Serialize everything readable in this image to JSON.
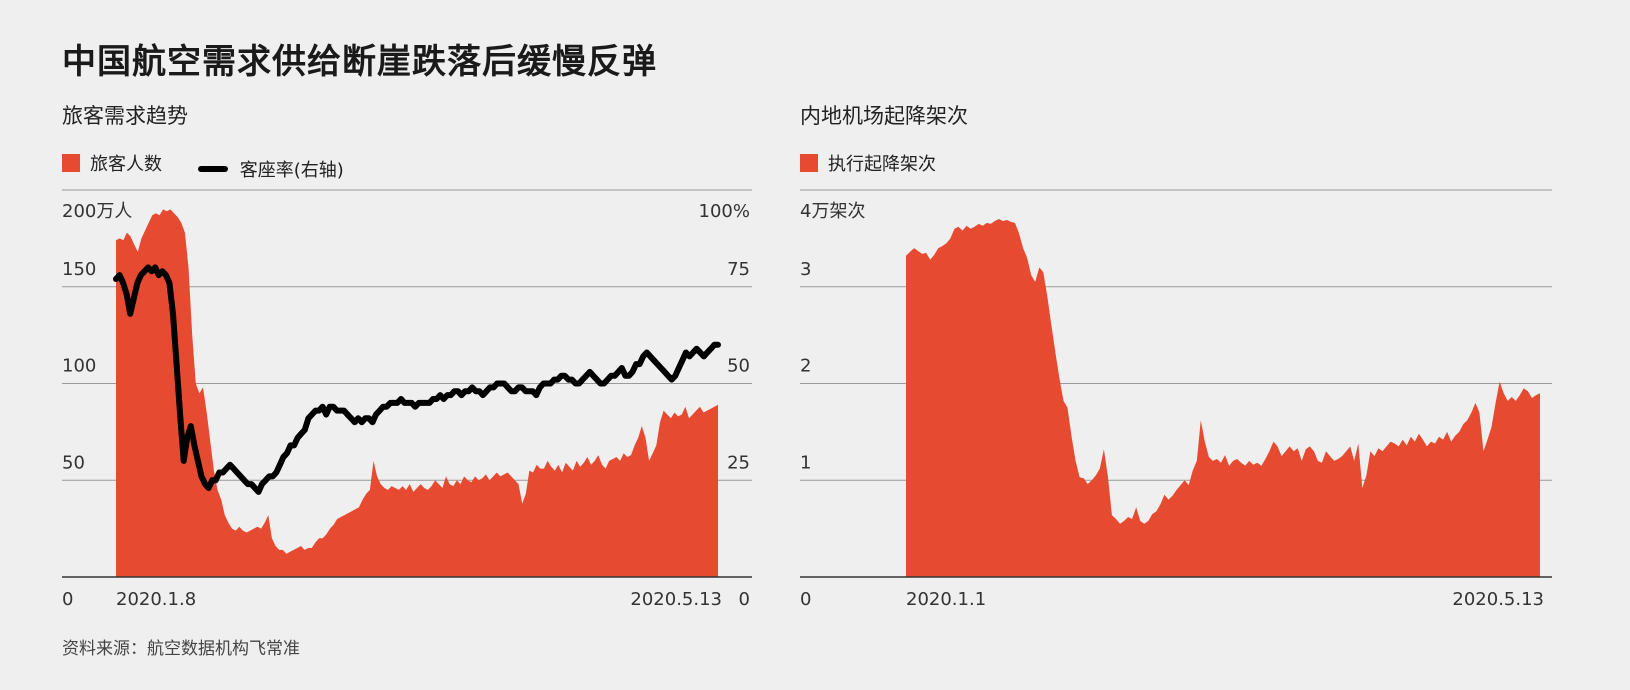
{
  "title": "中国航空需求供给断崖跌落后缓慢反弹",
  "source": "资料来源：航空数据机构飞常准",
  "colors": {
    "area": "#e64a31",
    "line": "#000000",
    "grid": "#9a9a9a",
    "axis": "#333333"
  },
  "chart_data": [
    {
      "type": "area",
      "title": "旅客需求趋势",
      "legend_placement": "top-left",
      "grid": true,
      "x_tick_labels": [
        "2020.1.8",
        "2020.5.13"
      ],
      "y_unit_label": "200万人",
      "y_right_unit_label": "100%",
      "ylim": [
        0,
        200
      ],
      "y_right_lim": [
        0,
        100
      ],
      "y_ticks": [
        {
          "value": 0,
          "label": "0"
        },
        {
          "value": 50,
          "label": "50"
        },
        {
          "value": 100,
          "label": "100"
        },
        {
          "value": 150,
          "label": "150"
        }
      ],
      "y_right_ticks": [
        {
          "value": 0,
          "label": "0"
        },
        {
          "value": 25,
          "label": "25"
        },
        {
          "value": 50,
          "label": "50"
        },
        {
          "value": 75,
          "label": "75"
        }
      ],
      "series": [
        {
          "name": "旅客人数",
          "kind": "area",
          "axis": "left",
          "values": [
            174,
            175,
            174,
            178,
            176,
            172,
            168,
            175,
            179,
            183,
            187,
            188,
            187,
            190,
            189,
            190,
            188,
            186,
            183,
            178,
            160,
            125,
            100,
            95,
            98,
            85,
            70,
            55,
            45,
            40,
            32,
            28,
            25,
            24,
            26,
            24,
            23,
            24,
            25,
            26,
            25,
            28,
            32,
            20,
            16,
            14,
            14,
            12,
            13,
            14,
            15,
            16,
            14,
            15,
            15,
            18,
            20,
            20,
            22,
            25,
            27,
            30,
            31,
            32,
            33,
            34,
            35,
            36,
            40,
            43,
            45,
            60,
            52,
            48,
            46,
            45,
            47,
            46,
            45,
            47,
            45,
            48,
            44,
            46,
            48,
            46,
            45,
            47,
            50,
            48,
            46,
            52,
            48,
            47,
            50,
            48,
            52,
            50,
            49,
            52,
            50,
            51,
            53,
            50,
            52,
            54,
            52,
            53,
            54,
            52,
            50,
            48,
            38,
            43,
            55,
            54,
            58,
            56,
            56,
            60,
            57,
            55,
            58,
            54,
            59,
            57,
            55,
            60,
            57,
            59,
            62,
            58,
            60,
            63,
            58,
            56,
            60,
            61,
            62,
            60,
            64,
            62,
            63,
            68,
            72,
            78,
            72,
            60,
            64,
            68,
            80,
            86,
            84,
            82,
            85,
            83,
            84,
            88,
            82,
            84,
            86,
            88,
            85,
            86,
            87,
            88,
            89
          ]
        },
        {
          "name": "客座率(右轴)",
          "kind": "line",
          "axis": "right",
          "values": [
            77,
            78,
            76,
            73,
            68,
            72,
            76,
            78,
            79,
            80,
            79,
            80,
            78,
            79,
            78,
            76,
            68,
            55,
            42,
            30,
            36,
            39,
            34,
            30,
            26,
            24,
            23,
            25,
            25,
            27,
            27,
            28,
            29,
            28,
            27,
            26,
            25,
            24,
            24,
            23,
            22,
            24,
            25,
            26,
            26,
            27,
            29,
            31,
            32,
            34,
            34,
            36,
            37,
            38,
            41,
            42,
            43,
            43,
            44,
            42,
            44,
            44,
            43,
            43,
            43,
            42,
            41,
            40,
            41,
            40,
            41,
            41,
            40,
            42,
            43,
            44,
            44,
            45,
            45,
            45,
            46,
            45,
            45,
            45,
            44,
            45,
            45,
            45,
            45,
            46,
            46,
            47,
            46,
            47,
            47,
            48,
            48,
            47,
            48,
            48,
            49,
            48,
            48,
            47,
            48,
            49,
            49,
            50,
            50,
            50,
            49,
            48,
            48,
            49,
            49,
            48,
            48,
            48,
            47,
            49,
            50,
            50,
            50,
            51,
            51,
            52,
            52,
            51,
            51,
            50,
            50,
            51,
            52,
            53,
            52,
            51,
            50,
            50,
            51,
            52,
            52,
            53,
            54,
            52,
            52,
            53,
            55,
            55,
            57,
            58,
            57,
            56,
            55,
            54,
            53,
            52,
            51,
            52,
            54,
            56,
            58,
            57,
            58,
            59,
            58,
            57,
            58,
            59,
            60,
            60
          ]
        }
      ]
    },
    {
      "type": "area",
      "title": "内地机场起降架次",
      "legend_placement": "top-left",
      "grid": true,
      "x_tick_labels": [
        "2020.1.1",
        "2020.5.13"
      ],
      "y_unit_label": "4万架次",
      "ylim": [
        0,
        4
      ],
      "y_ticks": [
        {
          "value": 0,
          "label": "0"
        },
        {
          "value": 1,
          "label": "1"
        },
        {
          "value": 2,
          "label": "2"
        },
        {
          "value": 3,
          "label": "3"
        }
      ],
      "series": [
        {
          "name": "执行起降架次",
          "kind": "area",
          "axis": "left",
          "values": [
            3.32,
            3.36,
            3.4,
            3.37,
            3.34,
            3.35,
            3.28,
            3.33,
            3.4,
            3.42,
            3.45,
            3.5,
            3.6,
            3.62,
            3.58,
            3.63,
            3.6,
            3.62,
            3.65,
            3.63,
            3.66,
            3.65,
            3.68,
            3.7,
            3.68,
            3.69,
            3.67,
            3.66,
            3.55,
            3.4,
            3.3,
            3.12,
            3.05,
            3.2,
            3.15,
            2.9,
            2.6,
            2.32,
            2.05,
            1.82,
            1.75,
            1.45,
            1.2,
            1.03,
            1.02,
            0.96,
            1.0,
            1.05,
            1.12,
            1.32,
            1.04,
            0.64,
            0.6,
            0.55,
            0.58,
            0.62,
            0.6,
            0.72,
            0.58,
            0.55,
            0.58,
            0.65,
            0.68,
            0.75,
            0.85,
            0.8,
            0.84,
            0.9,
            0.95,
            1.0,
            0.95,
            1.1,
            1.2,
            1.62,
            1.4,
            1.24,
            1.2,
            1.22,
            1.18,
            1.26,
            1.15,
            1.2,
            1.22,
            1.18,
            1.15,
            1.2,
            1.16,
            1.18,
            1.15,
            1.22,
            1.3,
            1.4,
            1.35,
            1.25,
            1.3,
            1.35,
            1.3,
            1.33,
            1.2,
            1.32,
            1.35,
            1.3,
            1.2,
            1.18,
            1.3,
            1.25,
            1.2,
            1.22,
            1.25,
            1.3,
            1.35,
            1.2,
            1.38,
            0.92,
            1.05,
            1.3,
            1.25,
            1.33,
            1.3,
            1.35,
            1.4,
            1.38,
            1.35,
            1.42,
            1.36,
            1.45,
            1.4,
            1.48,
            1.42,
            1.35,
            1.4,
            1.38,
            1.45,
            1.42,
            1.5,
            1.4,
            1.46,
            1.5,
            1.58,
            1.62,
            1.7,
            1.8,
            1.7,
            1.3,
            1.42,
            1.55,
            1.8,
            2.02,
            1.9,
            1.82,
            1.86,
            1.82,
            1.88,
            1.95,
            1.92,
            1.85,
            1.88,
            1.9
          ]
        }
      ]
    }
  ]
}
